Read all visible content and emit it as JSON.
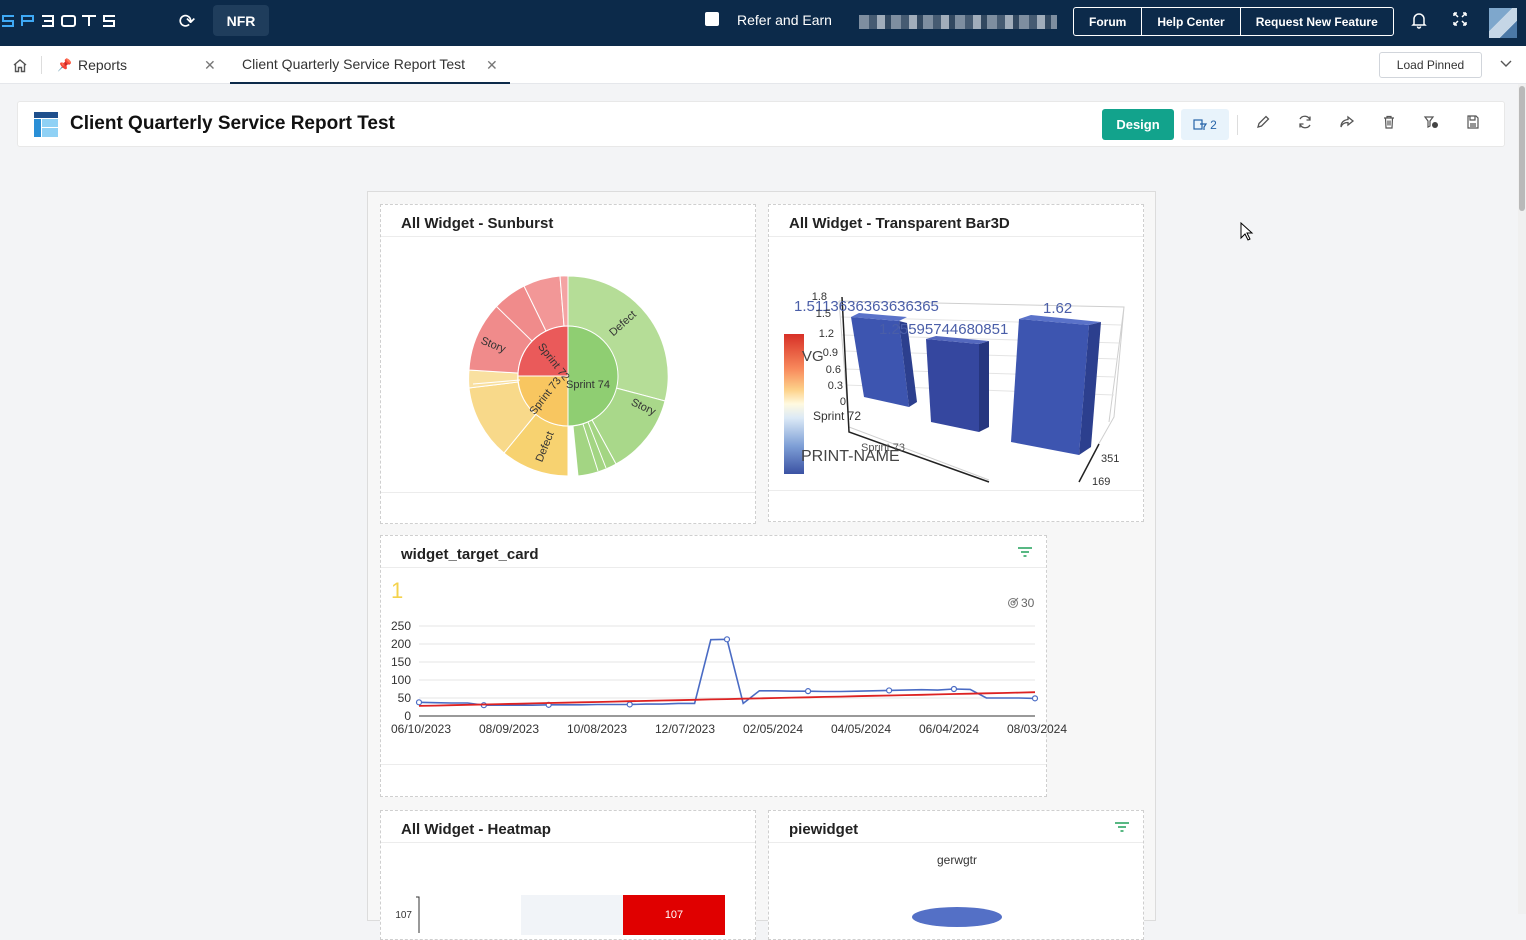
{
  "topbar": {
    "logo": "SPBOTS",
    "nfr_label": "NFR",
    "refer_label": "Refer and Earn",
    "nav": [
      "Forum",
      "Help Center",
      "Request New Feature"
    ]
  },
  "tabs": {
    "reports_label": "Reports",
    "active_label": "Client Quarterly Service Report Test",
    "load_pinned_label": "Load Pinned"
  },
  "report": {
    "title": "Client Quarterly Service Report Test",
    "design_label": "Design",
    "filter_count": "2"
  },
  "icons": {
    "sync": "sync-icon",
    "bell": "bell-icon",
    "expand": "expand-icon",
    "home": "home-icon",
    "edit": "pencil-icon",
    "refresh": "refresh-icon",
    "share": "share-icon",
    "delete": "trash-icon",
    "schedule": "schedule-icon",
    "save": "save-icon"
  },
  "widgets": {
    "sunburst": {
      "title": "All Widget - Sunburst",
      "labels": [
        "Sprint 74",
        "Sprint 72",
        "Sprint 73",
        "Defect",
        "Story",
        "Story",
        "Defect"
      ]
    },
    "bar3d": {
      "title": "All Widget - Transparent Bar3D",
      "value_labels": [
        "1.5113636363636365",
        "1.62",
        "1.25595744680851"
      ],
      "axis_label": "PRINT-NAME",
      "z_label": "VG",
      "z_ticks": [
        "1.8",
        "1.5",
        "1.2",
        "0.9",
        "0.6",
        "0.3",
        "0"
      ],
      "x_ticks": [
        "Sprint 72",
        "Sprint 73"
      ],
      "y_ticks": [
        "351",
        "169"
      ]
    },
    "target_card": {
      "title": "widget_target_card",
      "big_value": "1",
      "target_value": "30"
    },
    "heatmap": {
      "title": "All Widget - Heatmap",
      "y_tick": "107",
      "cell_value": "107"
    },
    "pie": {
      "title": "piewidget",
      "chart_title": "gerwgtr"
    }
  },
  "chart_data": [
    {
      "type": "line",
      "title": "",
      "x_ticks": [
        "06/10/2023",
        "08/09/2023",
        "10/08/2023",
        "12/07/2023",
        "02/05/2024",
        "04/05/2024",
        "06/04/2024",
        "08/03/2024"
      ],
      "ylim": [
        0,
        250
      ],
      "y_ticks": [
        0,
        50,
        100,
        150,
        200,
        250
      ],
      "series": [
        {
          "color": "#4a6bc4",
          "values": [
            38,
            37,
            36,
            36,
            30,
            30,
            30,
            30,
            31,
            31,
            31,
            32,
            32,
            32,
            33,
            33,
            35,
            35,
            212,
            213,
            35,
            70,
            70,
            69,
            69,
            68,
            68,
            69,
            70,
            71,
            72,
            73,
            72,
            75,
            74,
            50,
            50,
            50,
            49
          ]
        },
        {
          "color": "#dd2222",
          "values": [
            28,
            29,
            30,
            31,
            32,
            33,
            34,
            35,
            36,
            37,
            38,
            39,
            40,
            41,
            42,
            43,
            44,
            45,
            46,
            47,
            48,
            49,
            50,
            51,
            52,
            53,
            54,
            55,
            56,
            57,
            58,
            59,
            60,
            61,
            62,
            63,
            64,
            65,
            66
          ]
        }
      ]
    },
    {
      "type": "bar",
      "title": "",
      "categories": [
        "Sprint 72",
        "Sprint 73",
        ""
      ],
      "values": [
        1.5113636363636365,
        1.25595744680851,
        1.62
      ],
      "ylim": [
        0,
        1.8
      ]
    },
    {
      "type": "pie",
      "title": "",
      "inner": [
        {
          "name": "Sprint 74",
          "value": 50,
          "color": "#8fce72"
        },
        {
          "name": "Sprint 73",
          "value": 25,
          "color": "#f8c660"
        },
        {
          "name": "Sprint 72",
          "value": 25,
          "color": "#ea5a5a"
        }
      ]
    }
  ]
}
